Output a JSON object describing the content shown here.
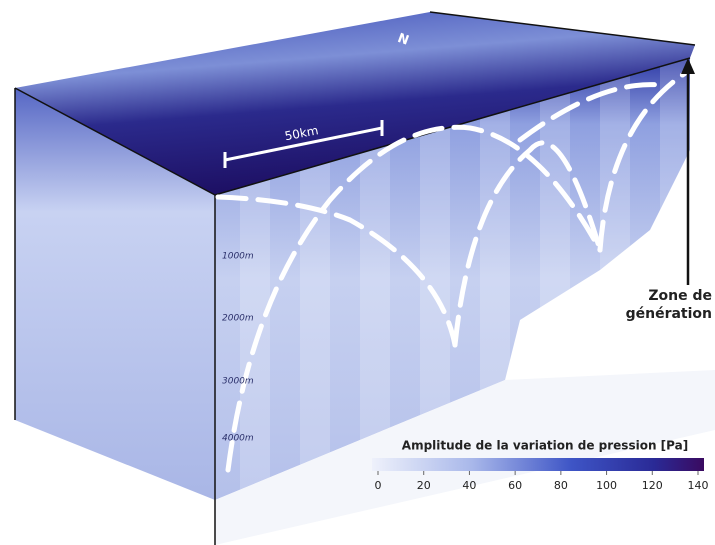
{
  "diagram": {
    "north_label": "N",
    "scale_label": "50km",
    "depth_labels": [
      "1000m",
      "2000m",
      "3000m",
      "4000m"
    ],
    "annotation": "Zone de\ngénération",
    "colorbar": {
      "title": "Amplitude de la variation de pression [Pa]",
      "lim": [
        0,
        140
      ],
      "ticks": [
        0,
        20,
        40,
        60,
        80,
        100,
        120,
        140
      ]
    }
  }
}
